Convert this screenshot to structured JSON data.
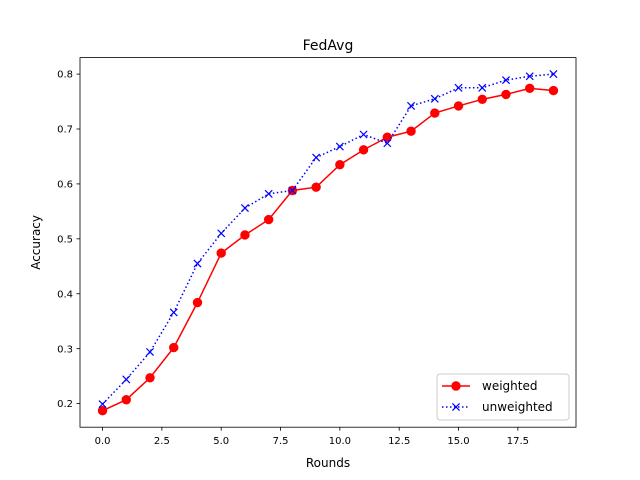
{
  "chart_data": {
    "type": "line",
    "title": "FedAvg",
    "xlabel": "Rounds",
    "ylabel": "Accuracy",
    "xlim": [
      -0.95,
      19.95
    ],
    "ylim": [
      0.157,
      0.83
    ],
    "xticks": [
      0.0,
      2.5,
      5.0,
      7.5,
      10.0,
      12.5,
      15.0,
      17.5
    ],
    "xtick_labels": [
      "0.0",
      "2.5",
      "5.0",
      "7.5",
      "10.0",
      "12.5",
      "15.0",
      "17.5"
    ],
    "yticks": [
      0.2,
      0.3,
      0.4,
      0.5,
      0.6,
      0.7,
      0.8
    ],
    "ytick_labels": [
      "0.2",
      "0.3",
      "0.4",
      "0.5",
      "0.6",
      "0.7",
      "0.8"
    ],
    "grid": false,
    "legend_position": "bottom-right",
    "x": [
      0,
      1,
      2,
      3,
      4,
      5,
      6,
      7,
      8,
      9,
      10,
      11,
      12,
      13,
      14,
      15,
      16,
      17,
      18,
      19
    ],
    "series": [
      {
        "name": "weighted",
        "color": "#ff0000",
        "marker": "circle",
        "line_style": "solid",
        "values": [
          0.187,
          0.207,
          0.247,
          0.302,
          0.384,
          0.474,
          0.507,
          0.535,
          0.588,
          0.594,
          0.635,
          0.662,
          0.685,
          0.696,
          0.729,
          0.742,
          0.754,
          0.763,
          0.774,
          0.77
        ]
      },
      {
        "name": "unweighted",
        "color": "#0000ff",
        "marker": "x",
        "line_style": "dotted",
        "values": [
          0.199,
          0.244,
          0.294,
          0.366,
          0.455,
          0.51,
          0.556,
          0.582,
          0.588,
          0.648,
          0.668,
          0.69,
          0.674,
          0.742,
          0.755,
          0.775,
          0.775,
          0.789,
          0.796,
          0.8
        ]
      }
    ]
  }
}
